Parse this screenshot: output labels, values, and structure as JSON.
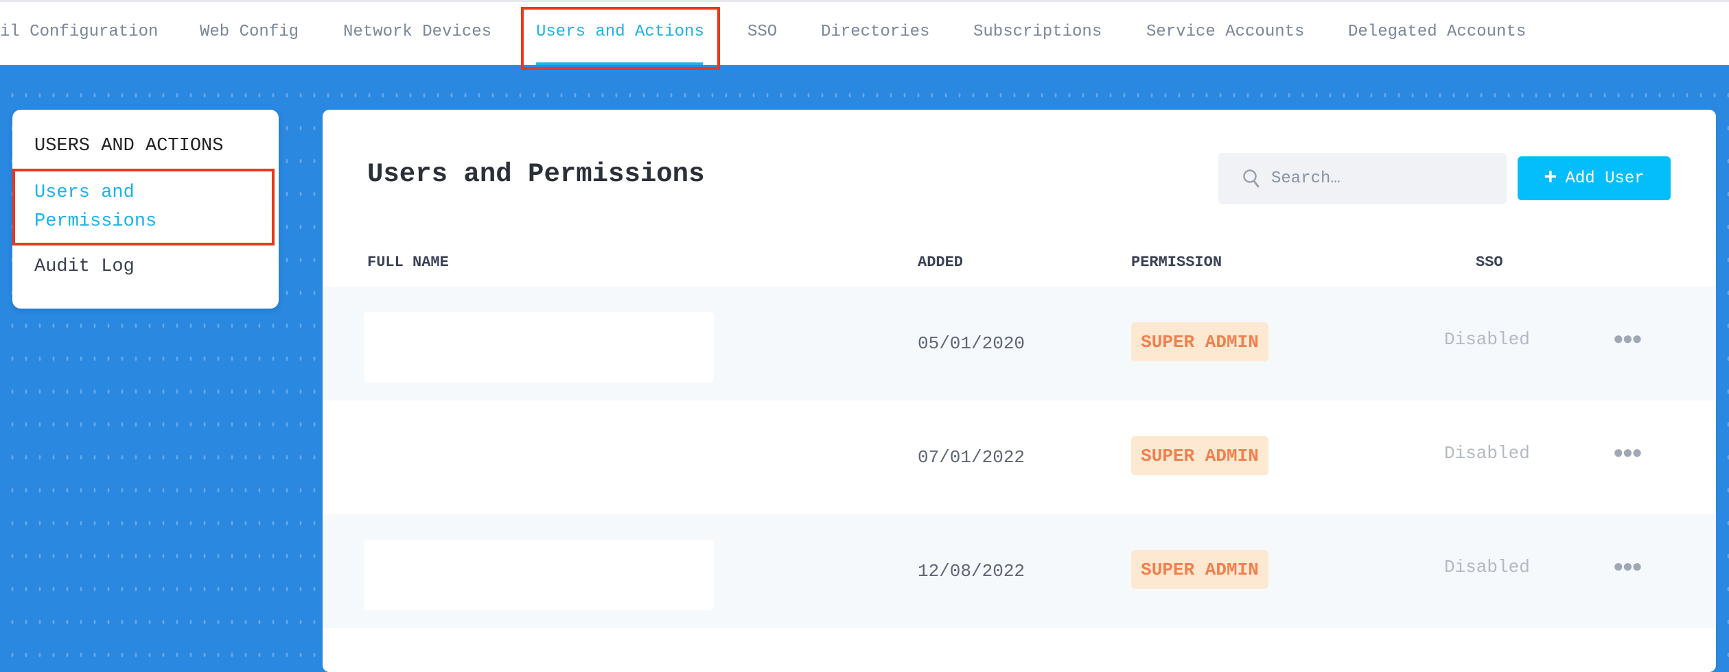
{
  "top_tabs": [
    {
      "label": "il Configuration",
      "active": false
    },
    {
      "label": "Web Config",
      "active": false
    },
    {
      "label": "Network Devices",
      "active": false
    },
    {
      "label": "Users and Actions",
      "active": true
    },
    {
      "label": "SSO",
      "active": false
    },
    {
      "label": "Directories",
      "active": false
    },
    {
      "label": "Subscriptions",
      "active": false
    },
    {
      "label": "Service Accounts",
      "active": false
    },
    {
      "label": "Delegated Accounts",
      "active": false
    }
  ],
  "sidebar": {
    "heading": "USERS AND ACTIONS",
    "items": [
      {
        "label_line1": "Users and",
        "label_line2": "Permissions",
        "active": true
      },
      {
        "label": "Audit Log",
        "active": false
      }
    ]
  },
  "main": {
    "title": "Users and Permissions",
    "search": {
      "placeholder": "Search…",
      "icon": "search-icon"
    },
    "add_button": {
      "label": "Add User",
      "icon": "plus-icon"
    },
    "columns": [
      "FULL NAME",
      "ADDED",
      "PERMISSION",
      "SSO"
    ],
    "rows": [
      {
        "full_name": "",
        "added": "05/01/2020",
        "permission": "SUPER ADMIN",
        "sso": "Disabled"
      },
      {
        "full_name": "",
        "added": "07/01/2022",
        "permission": "SUPER ADMIN",
        "sso": "Disabled"
      },
      {
        "full_name": "",
        "added": "12/08/2022",
        "permission": "SUPER ADMIN",
        "sso": "Disabled"
      }
    ]
  },
  "colors": {
    "accent": "#1ab3ea",
    "button": "#03befa",
    "background": "#2a88e0",
    "badge_bg": "#fde8d1",
    "badge_text": "#f2804f",
    "highlight": "#e8391d"
  }
}
